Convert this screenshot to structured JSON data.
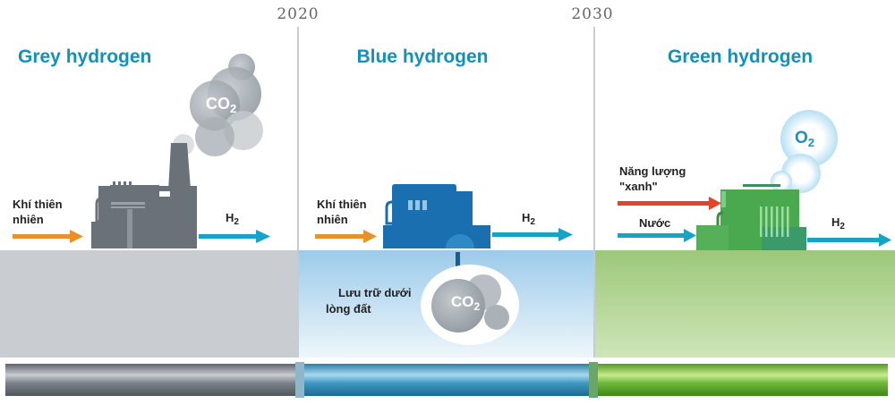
{
  "years": [
    "2020",
    "2030"
  ],
  "sections": [
    {
      "title": "Grey hydrogen",
      "input_label_line1": "Khí thiên",
      "input_label_line2": "nhiên",
      "output": {
        "main": "H",
        "sub": "2"
      },
      "emission": {
        "main": "CO",
        "sub": "2"
      },
      "color": "#6b7178"
    },
    {
      "title": "Blue hydrogen",
      "input_label_line1": "Khí thiên",
      "input_label_line2": "nhiên",
      "output": {
        "main": "H",
        "sub": "2"
      },
      "storage_line1": "Lưu trữ dưới",
      "storage_line2": "lòng đất",
      "emission": {
        "main": "CO",
        "sub": "2"
      },
      "color": "#1a6fb0"
    },
    {
      "title": "Green hydrogen",
      "energy_label_line1": "Năng lượng",
      "energy_label_line2": "\"xanh\"",
      "water_label": "Nước",
      "output": {
        "main": "H",
        "sub": "2"
      },
      "emission": {
        "main": "O",
        "sub": "2"
      },
      "color": "#4aa84f"
    }
  ],
  "colors": {
    "title": "#1590b8",
    "gas_arrow": "#e8902a",
    "h2_arrow": "#17a2c8",
    "energy_arrow": "#e0452a"
  }
}
